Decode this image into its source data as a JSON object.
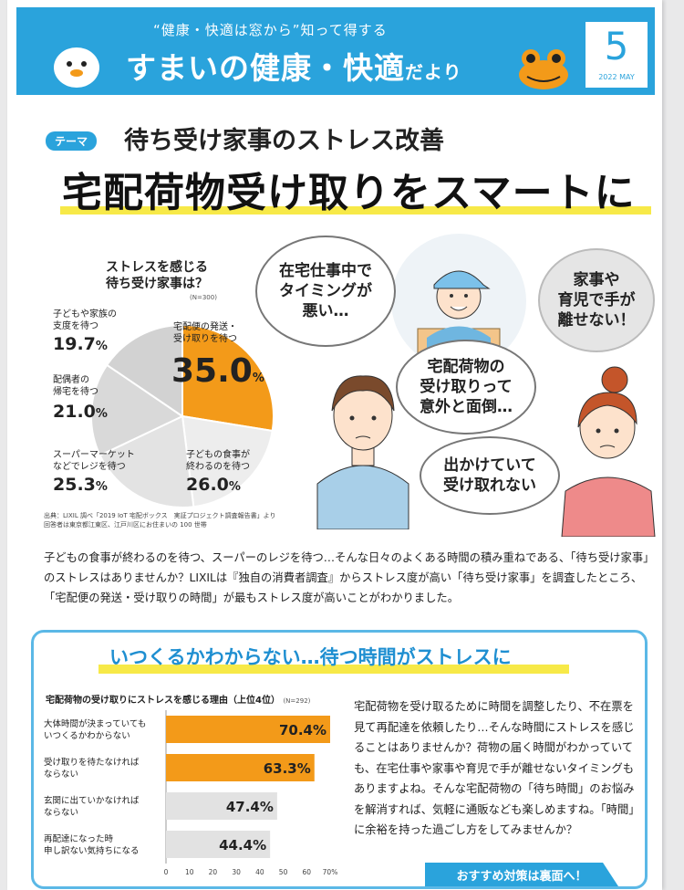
{
  "header": {
    "tagline": "“健康・快適は窓から”知って得する",
    "brand_main": "すまいの健康・快適",
    "brand_small": "だより",
    "issue_number": "5",
    "issue_date": "2022 MAY",
    "color": "#2aa3dc"
  },
  "theme": {
    "tag": "テーマ",
    "subtitle": "待ち受け家事のストレス改善",
    "title": "宅配荷物受け取りをスマートに"
  },
  "survey": {
    "question_line1": "ストレスを感じる",
    "question_line2": "待ち受け家事は？",
    "n": "(N=300)",
    "slices": [
      {
        "label1": "宅配便の発送・",
        "label2": "受け取りを待つ",
        "value": "35.0",
        "pct": "%",
        "num": 35.0,
        "color": "#f39a19"
      },
      {
        "label1": "子どもの食事が",
        "label2": "終わるのを待つ",
        "value": "26.0",
        "pct": "%",
        "num": 26.0,
        "color": "#ededed"
      },
      {
        "label1": "スーパーマーケット",
        "label2": "などでレジを待つ",
        "value": "25.3",
        "pct": "%",
        "num": 25.3,
        "color": "#e3e3e3"
      },
      {
        "label1": "配偶者の",
        "label2": "帰宅を待つ",
        "value": "21.0",
        "pct": "%",
        "num": 21.0,
        "color": "#d9d9d9"
      },
      {
        "label1": "子どもや家族の",
        "label2": "支度を待つ",
        "value": "19.7",
        "pct": "%",
        "num": 19.7,
        "color": "#d2d2d2"
      }
    ],
    "source_line1": "出典：LIXIL 調べ「2019 IoT 宅配ボックス　実証プロジェクト調査報告書」より",
    "source_line2": "回答者は東京都江東区、江戸川区にお住まいの 100 世帯"
  },
  "bubbles": {
    "man": [
      "在宅仕事中で",
      "タイミングが",
      "悪い…"
    ],
    "courier": [
      "宅配荷物の",
      "受け取りって",
      "意外と面倒…"
    ],
    "woman_top": [
      "家事や",
      "育児で手が",
      "離せない！"
    ],
    "woman_bottom": [
      "出かけていて",
      "受け取れない"
    ]
  },
  "intro": "子どもの食事が終わるのを待つ、スーパーのレジを待つ…そんな日々のよくある時間の積み重ねである、「待ち受け家事」のストレスはありませんか？LIXILは『独自の消費者調査』からストレス度が高い「待ち受け家事」を調査したところ、「宅配便の発送・受け取りの時間」が最もストレス度が高いことがわかりました。",
  "box": {
    "title": "いつくるかわからない…待つ時間がストレスに",
    "chart_title": "宅配荷物の受け取りにストレスを感じる理由（上位4位）",
    "chart_n": "(N=292)",
    "right_text": "宅配荷物を受け取るために時間を調整したり、不在票を見て再配達を依頼したり…そんな時間にストレスを感じることはありませんか？荷物の届く時間がわかっていても、在宅仕事や家事や育児で手が離せないタイミングもありますよね。そんな宅配荷物の「待ち時間」のお悩みを解消すれば、気軽に通販なども楽しめますね。「時間」に余裕を持った過ごし方をしてみませんか？",
    "cta": "おすすめ対策は裏面へ！"
  },
  "chart_data": {
    "type": "bar",
    "orientation": "horizontal",
    "title": "宅配荷物の受け取りにストレスを感じる理由（上位4位）",
    "categories": [
      [
        "大体時間が決まっていても",
        "いつくるかわからない"
      ],
      [
        "受け取りを待たなければ",
        "ならない"
      ],
      [
        "玄関に出ていかなければ",
        "ならない"
      ],
      [
        "再配達になった時",
        "申し訳ない気持ちになる"
      ]
    ],
    "values": [
      70.4,
      63.3,
      47.4,
      44.4
    ],
    "value_labels": [
      "70.4",
      "63.3",
      "47.4",
      "44.4"
    ],
    "colors": [
      "#f39a19",
      "#f39a19",
      "#e2e2e2",
      "#e2e2e2"
    ],
    "xlim": [
      0,
      70
    ],
    "ticks": [
      "0",
      "10",
      "20",
      "30",
      "40",
      "50",
      "60",
      "70%"
    ]
  }
}
